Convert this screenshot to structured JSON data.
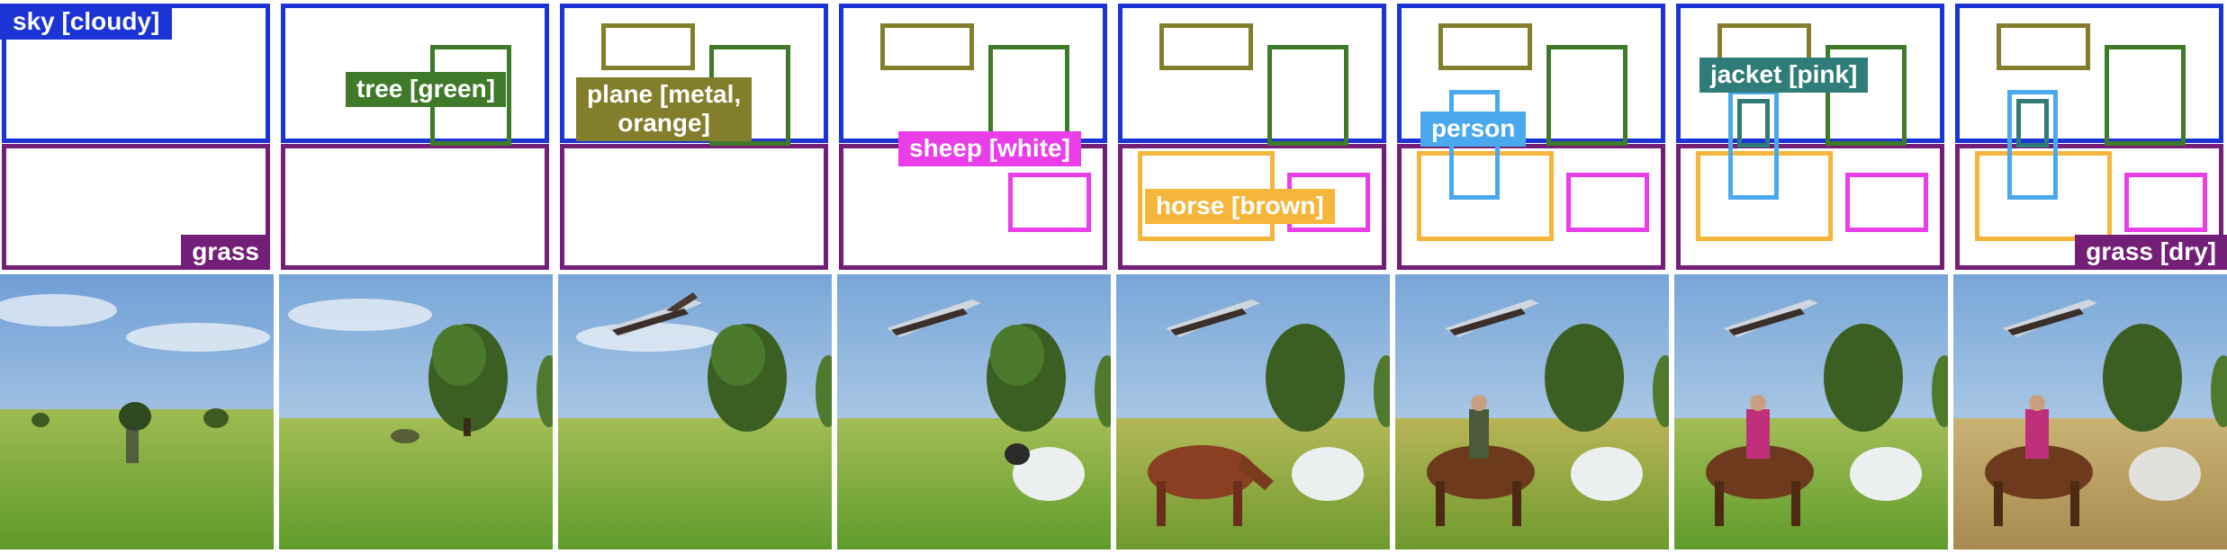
{
  "colors": {
    "sky": "#1c34d6",
    "grass": "#731f78",
    "tree": "#3f7a2a",
    "plane": "#827e2c",
    "sheep": "#e93ee8",
    "horse": "#f5b63b",
    "person": "#4aa9ee",
    "jacket": "#2f7c79",
    "divider": "#d2242c"
  },
  "labels": {
    "sky": "sky [cloudy]",
    "tree": "tree [green]",
    "plane": "plane [metal,\norange]",
    "sheep": "sheep [white]",
    "horse": "horse [brown]",
    "person": "person",
    "jacket": "jacket [pink]",
    "grass": "grass",
    "grass_dry": "grass [dry]"
  },
  "frames": [
    {
      "objects": [
        "sky",
        "grass"
      ],
      "label": "sky"
    },
    {
      "objects": [
        "sky",
        "grass",
        "tree"
      ],
      "label": "tree"
    },
    {
      "objects": [
        "sky",
        "grass",
        "tree",
        "plane"
      ],
      "label": "plane"
    },
    {
      "objects": [
        "sky",
        "grass",
        "tree",
        "plane",
        "sheep"
      ],
      "label": "sheep"
    },
    {
      "objects": [
        "sky",
        "grass",
        "tree",
        "plane",
        "sheep",
        "horse"
      ],
      "label": "horse"
    },
    {
      "objects": [
        "sky",
        "grass",
        "tree",
        "plane",
        "sheep",
        "horse",
        "person"
      ],
      "label": "person"
    },
    {
      "objects": [
        "sky",
        "grass",
        "tree",
        "plane",
        "sheep",
        "horse",
        "person",
        "jacket"
      ],
      "label": "jacket"
    },
    {
      "objects": [
        "sky",
        "grass",
        "tree",
        "plane",
        "sheep",
        "horse",
        "person",
        "jacket"
      ],
      "label": "grass_dry"
    }
  ]
}
